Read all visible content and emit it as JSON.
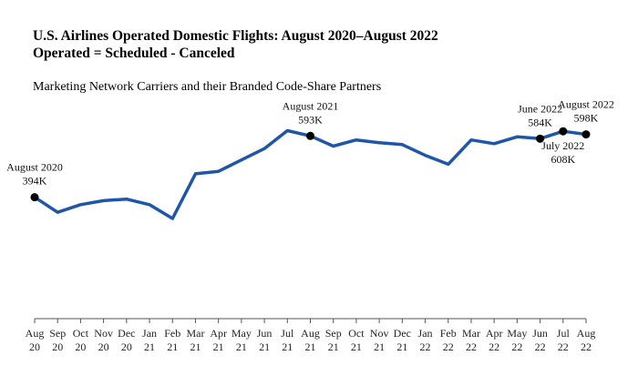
{
  "title_line1": "U.S. Airlines Operated Domestic Flights: August 2020–August 2022",
  "title_line2": "Operated = Scheduled - Canceled",
  "subtitle": "Marketing Network Carriers and their Branded Code-Share Partners",
  "chart_data": {
    "type": "line",
    "title": "U.S. Airlines Operated Domestic Flights: August 2020–August 2022",
    "subtitle": "Operated = Scheduled - Canceled",
    "unit": "K",
    "line_color": "#1f56a8",
    "x": [
      {
        "month": "Aug",
        "year": "20"
      },
      {
        "month": "Sep",
        "year": "20"
      },
      {
        "month": "Oct",
        "year": "20"
      },
      {
        "month": "Nov",
        "year": "20"
      },
      {
        "month": "Dec",
        "year": "20"
      },
      {
        "month": "Jan",
        "year": "21"
      },
      {
        "month": "Feb",
        "year": "21"
      },
      {
        "month": "Mar",
        "year": "21"
      },
      {
        "month": "Apr",
        "year": "21"
      },
      {
        "month": "May",
        "year": "21"
      },
      {
        "month": "Jun",
        "year": "21"
      },
      {
        "month": "Jul",
        "year": "21"
      },
      {
        "month": "Aug",
        "year": "21"
      },
      {
        "month": "Sep",
        "year": "21"
      },
      {
        "month": "Oct",
        "year": "21"
      },
      {
        "month": "Nov",
        "year": "21"
      },
      {
        "month": "Dec",
        "year": "21"
      },
      {
        "month": "Jan",
        "year": "22"
      },
      {
        "month": "Feb",
        "year": "22"
      },
      {
        "month": "Mar",
        "year": "22"
      },
      {
        "month": "Apr",
        "year": "22"
      },
      {
        "month": "May",
        "year": "22"
      },
      {
        "month": "Jun",
        "year": "22"
      },
      {
        "month": "Jul",
        "year": "22"
      },
      {
        "month": "Aug",
        "year": "22"
      }
    ],
    "values": [
      394,
      345,
      370,
      383,
      388,
      370,
      325,
      470,
      478,
      515,
      552,
      610,
      593,
      560,
      580,
      571,
      565,
      530,
      501,
      580,
      568,
      590,
      584,
      608,
      598
    ],
    "ylim": [
      0,
      650
    ],
    "annotations": [
      {
        "index": 0,
        "line1": "August 2020",
        "line2": "394K",
        "position": "above"
      },
      {
        "index": 12,
        "line1": "August 2021",
        "line2": "593K",
        "position": "above"
      },
      {
        "index": 22,
        "line1": "June 2022",
        "line2": "584K",
        "position": "above"
      },
      {
        "index": 23,
        "line1": "July 2022",
        "line2": "608K",
        "position": "below"
      },
      {
        "index": 24,
        "line1": "August 2022",
        "line2": "598K",
        "position": "above"
      }
    ]
  }
}
